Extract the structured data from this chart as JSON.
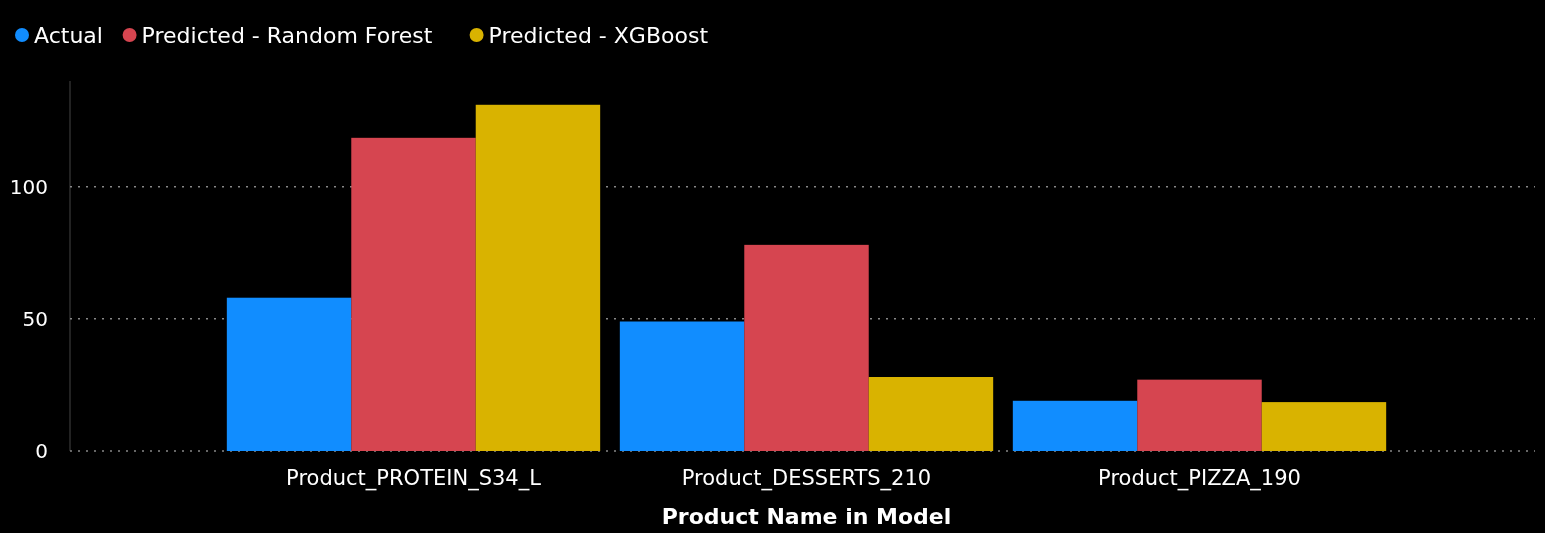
{
  "chart_data": {
    "type": "bar",
    "xlabel": "Product Name in Model",
    "categories": [
      "Product_PROTEIN_S34_L",
      "Product_DESSERTS_210",
      "Product_PIZZA_190"
    ],
    "series": [
      {
        "name": "Actual",
        "color": "#118dff",
        "values": [
          58,
          49,
          19
        ]
      },
      {
        "name": "Predicted - Random Forest",
        "color": "#d64550",
        "values": [
          118.5,
          78,
          27
        ]
      },
      {
        "name": "Predicted - XGBoost",
        "color": "#d9b300",
        "values": [
          131,
          28,
          18.5
        ]
      }
    ],
    "ylim": [
      0,
      140
    ],
    "yticks": [
      0,
      50,
      100
    ],
    "grid": "y",
    "legend": "top left"
  }
}
